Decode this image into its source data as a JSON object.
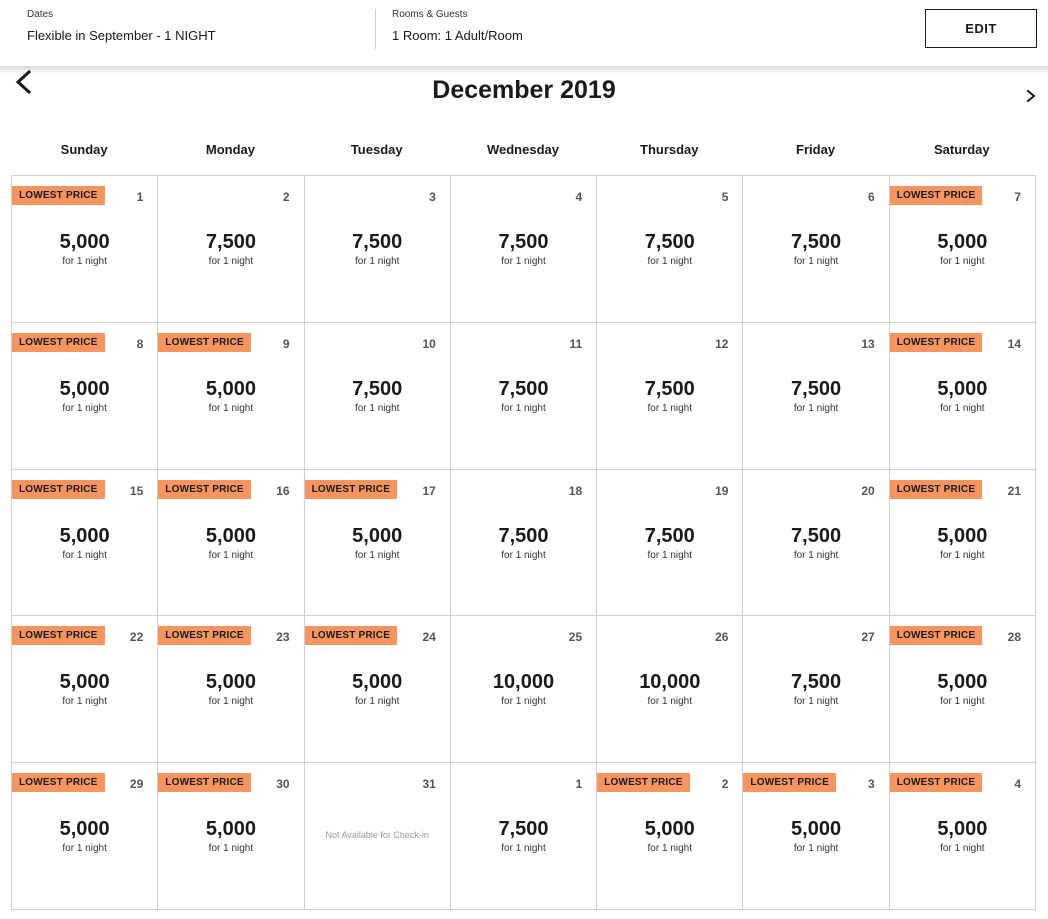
{
  "header": {
    "dates_label": "Dates",
    "dates_value": "Flexible in September - 1 NIGHT",
    "rooms_label": "Rooms & Guests",
    "rooms_value": "1 Room: 1 Adult/Room",
    "edit_label": "EDIT"
  },
  "calendar": {
    "month_title": "December 2019",
    "weekdays": [
      "Sunday",
      "Monday",
      "Tuesday",
      "Wednesday",
      "Thursday",
      "Friday",
      "Saturday"
    ],
    "badge_label": "LOWEST PRICE",
    "night_label": "for 1 night",
    "unavailable_label": "Not Available for Check-in",
    "days": [
      {
        "day": "1",
        "price": "5,000",
        "lowest": true
      },
      {
        "day": "2",
        "price": "7,500",
        "lowest": false
      },
      {
        "day": "3",
        "price": "7,500",
        "lowest": false
      },
      {
        "day": "4",
        "price": "7,500",
        "lowest": false
      },
      {
        "day": "5",
        "price": "7,500",
        "lowest": false
      },
      {
        "day": "6",
        "price": "7,500",
        "lowest": false
      },
      {
        "day": "7",
        "price": "5,000",
        "lowest": true
      },
      {
        "day": "8",
        "price": "5,000",
        "lowest": true
      },
      {
        "day": "9",
        "price": "5,000",
        "lowest": true
      },
      {
        "day": "10",
        "price": "7,500",
        "lowest": false
      },
      {
        "day": "11",
        "price": "7,500",
        "lowest": false
      },
      {
        "day": "12",
        "price": "7,500",
        "lowest": false
      },
      {
        "day": "13",
        "price": "7,500",
        "lowest": false
      },
      {
        "day": "14",
        "price": "5,000",
        "lowest": true
      },
      {
        "day": "15",
        "price": "5,000",
        "lowest": true
      },
      {
        "day": "16",
        "price": "5,000",
        "lowest": true
      },
      {
        "day": "17",
        "price": "5,000",
        "lowest": true
      },
      {
        "day": "18",
        "price": "7,500",
        "lowest": false
      },
      {
        "day": "19",
        "price": "7,500",
        "lowest": false
      },
      {
        "day": "20",
        "price": "7,500",
        "lowest": false
      },
      {
        "day": "21",
        "price": "5,000",
        "lowest": true
      },
      {
        "day": "22",
        "price": "5,000",
        "lowest": true
      },
      {
        "day": "23",
        "price": "5,000",
        "lowest": true
      },
      {
        "day": "24",
        "price": "5,000",
        "lowest": true
      },
      {
        "day": "25",
        "price": "10,000",
        "lowest": false
      },
      {
        "day": "26",
        "price": "10,000",
        "lowest": false
      },
      {
        "day": "27",
        "price": "7,500",
        "lowest": false
      },
      {
        "day": "28",
        "price": "5,000",
        "lowest": true
      },
      {
        "day": "29",
        "price": "5,000",
        "lowest": true
      },
      {
        "day": "30",
        "price": "5,000",
        "lowest": true
      },
      {
        "day": "31",
        "price": null,
        "lowest": false,
        "unavailable": true
      },
      {
        "day": "1",
        "price": "7,500",
        "lowest": false
      },
      {
        "day": "2",
        "price": "5,000",
        "lowest": true
      },
      {
        "day": "3",
        "price": "5,000",
        "lowest": true
      },
      {
        "day": "4",
        "price": "5,000",
        "lowest": true
      }
    ]
  },
  "colors": {
    "badge": "#f8955f",
    "border": "#cfcfcf"
  },
  "icons": {
    "prev": "chevron-left-icon",
    "next": "chevron-right-icon"
  }
}
